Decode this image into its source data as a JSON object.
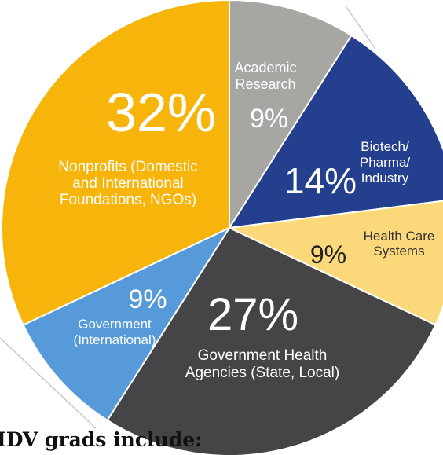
{
  "chart_data": {
    "type": "pie",
    "slices": [
      {
        "label_lines": [
          "Academic",
          "Research"
        ],
        "pct_text": "9%",
        "value": 9,
        "color": "#a8a6a3",
        "pct_color": "#ffffff",
        "label_color": "#ffffff"
      },
      {
        "label_lines": [
          "Biotech/",
          "Pharma/",
          "Industry"
        ],
        "pct_text": "14%",
        "value": 14,
        "color": "#233f8d",
        "pct_color": "#ffffff",
        "label_color": "#ffffff"
      },
      {
        "label_lines": [
          "Health Care",
          "Systems"
        ],
        "pct_text": "9%",
        "value": 9,
        "color": "#fbd97b",
        "pct_color": "#222222",
        "label_color": "#333333"
      },
      {
        "label_lines": [
          "Government Health",
          "Agencies (State, Local)"
        ],
        "pct_text": "27%",
        "value": 27,
        "color": "#454547",
        "pct_color": "#ffffff",
        "label_color": "#ffffff"
      },
      {
        "label_lines": [
          "Government",
          "(International)"
        ],
        "pct_text": "9%",
        "value": 9,
        "color": "#579ad9",
        "pct_color": "#ffffff",
        "label_color": "#ffffff"
      },
      {
        "label_lines": [
          "Nonprofits (Domestic",
          "and International",
          "Foundations, NGOs)"
        ],
        "pct_text": "32%",
        "value": 32,
        "color": "#f7b40a",
        "pct_color": "#ffffff",
        "label_color": "#ffffff"
      }
    ]
  },
  "caption": "IDV grads include:"
}
